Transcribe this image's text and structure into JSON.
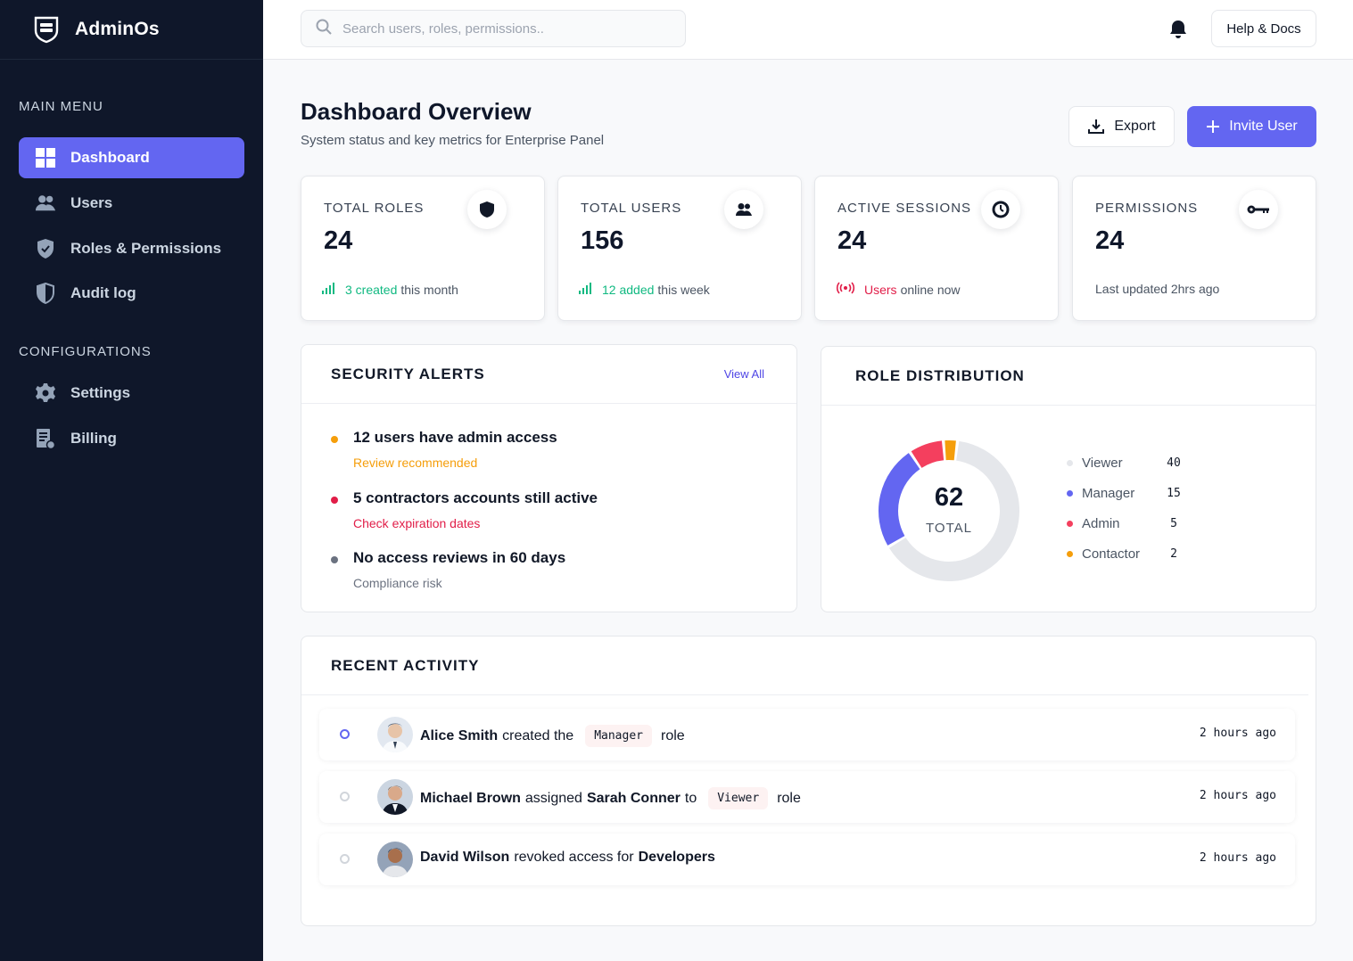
{
  "brand": {
    "name": "AdminOs"
  },
  "sidebar": {
    "main_menu_label": "MAIN MENU",
    "main_items": [
      {
        "label": "Dashboard",
        "icon": "grid-icon",
        "active": true
      },
      {
        "label": "Users",
        "icon": "users-icon"
      },
      {
        "label": "Roles & Permissions",
        "icon": "shield-icon"
      },
      {
        "label": "Audit log",
        "icon": "shield-half-icon"
      }
    ],
    "config_label": "CONFIGURATIONS",
    "config_items": [
      {
        "label": "Settings",
        "icon": "gear-icon"
      },
      {
        "label": "Billing",
        "icon": "invoice-icon"
      }
    ]
  },
  "header": {
    "search_placeholder": "Search users, roles, permissions..",
    "help_label": "Help & Docs"
  },
  "page": {
    "title": "Dashboard Overview",
    "subtitle": "System status and key metrics for Enterprise Panel",
    "export_label": "Export",
    "invite_label": "Invite User"
  },
  "stats": [
    {
      "label": "TOTAL ROLES",
      "value": "24",
      "icon": "shield-icon",
      "foot_accent": "3 created",
      "foot_rest": "this month"
    },
    {
      "label": "TOTAL USERS",
      "value": "156",
      "icon": "users-icon",
      "foot_accent": "12 added",
      "foot_rest": "this week"
    },
    {
      "label": "ACTIVE SESSIONS",
      "value": "24",
      "icon": "timer-icon",
      "foot_accent": "Users",
      "foot_rest": "online now"
    },
    {
      "label": "PERMISSIONS",
      "value": "24",
      "icon": "key-icon",
      "foot_text": "Last updated 2hrs ago"
    }
  ],
  "security_alerts": {
    "title": "SECURITY ALERTS",
    "view_all": "View All",
    "items": [
      {
        "title": "12 users have admin access",
        "sub": "Review recommended",
        "color": "#f59e0b"
      },
      {
        "title": "5 contractors accounts still active",
        "sub": "Check expiration dates",
        "color": "#e11d48"
      },
      {
        "title": "No access reviews in 60 days",
        "sub": "Compliance risk",
        "color": "#6b7280"
      }
    ]
  },
  "role_distribution": {
    "title": "ROLE DISTRIBUTION",
    "total": "62",
    "total_label": "TOTAL",
    "chart_data": {
      "type": "pie",
      "categories": [
        "Viewer",
        "Manager",
        "Admin",
        "Contactor"
      ],
      "values": [
        40,
        15,
        5,
        2
      ],
      "colors": [
        "#e5e7eb",
        "#6366f1",
        "#f43f5e",
        "#f59e0b"
      ]
    }
  },
  "recent_activity": {
    "title": "RECENT ACTIVITY",
    "items": [
      {
        "actor": "Alice Smith",
        "verb": "created the",
        "badge": "Manager",
        "after": "role",
        "time": "2 hours ago"
      },
      {
        "actor": "Michael Brown",
        "verb": "assigned",
        "target": "Sarah Conner",
        "mid": "to",
        "badge": "Viewer",
        "after": "role",
        "time": "2 hours ago"
      },
      {
        "actor": "David Wilson",
        "verb": "revoked access for",
        "target": "Developers",
        "time": "2 hours ago"
      }
    ]
  }
}
